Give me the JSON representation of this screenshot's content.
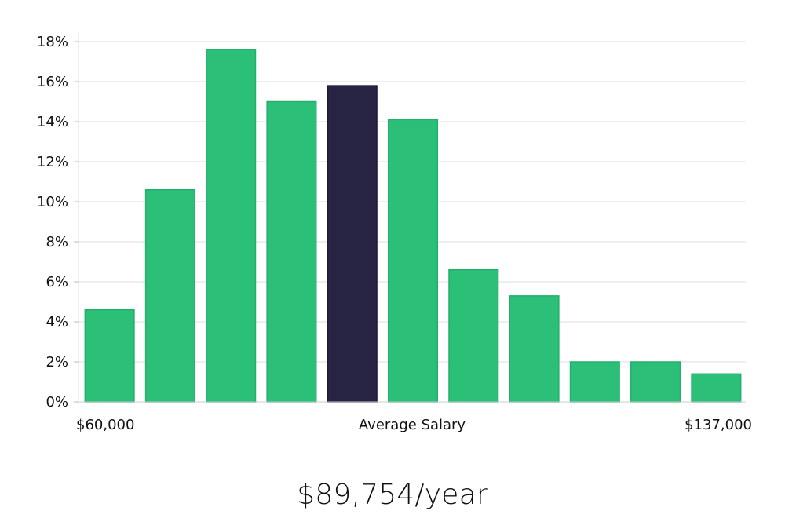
{
  "chart_data": {
    "type": "bar",
    "categories": [
      "1",
      "2",
      "3",
      "4",
      "5",
      "6",
      "7",
      "8",
      "9",
      "10",
      "11"
    ],
    "values": [
      4.6,
      10.6,
      17.6,
      15.0,
      15.8,
      14.1,
      6.6,
      5.3,
      2.0,
      2.0,
      1.4
    ],
    "highlight_index": 4,
    "ylim": [
      0,
      18
    ],
    "yticks": [
      0,
      2,
      4,
      6,
      8,
      10,
      12,
      14,
      16,
      18
    ],
    "ytick_suffix": "%",
    "grid": true,
    "x_left_label": "$60,000",
    "x_center_label": "Average Salary",
    "x_right_label": "$137,000",
    "bar_color": "#2bbf78",
    "highlight_color": "#272444",
    "grid_color": "#dddddd"
  },
  "summary": {
    "salary": "$89,754/year"
  }
}
